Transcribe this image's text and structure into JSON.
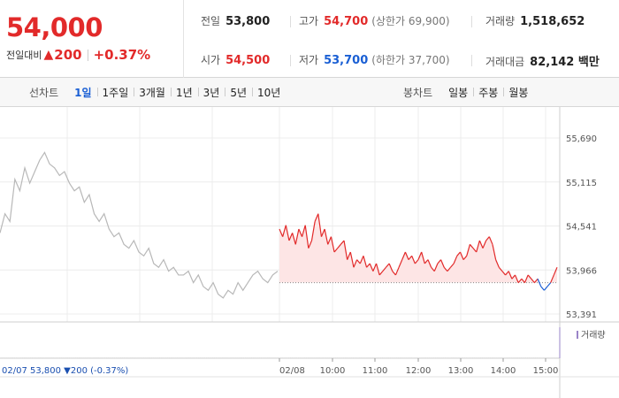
{
  "header": {
    "price": "54,000",
    "change_label": "전일대비",
    "change_arrow": "▲",
    "change_value": "200",
    "change_rate": "+0.37%"
  },
  "stats": {
    "prev_close_label": "전일",
    "prev_close": "53,800",
    "high_label": "고가",
    "high": "54,700",
    "upper_limit": "(상한가 69,900)",
    "volume_label": "거래량",
    "volume": "1,518,652",
    "open_label": "시가",
    "open": "54,500",
    "low_label": "저가",
    "low": "53,700",
    "lower_limit": "(하한가 37,700)",
    "amount_label": "거래대금",
    "amount": "82,142 백만"
  },
  "toolbar": {
    "line_label": "선차트",
    "line_periods": [
      "1일",
      "1주일",
      "3개월",
      "1년",
      "3년",
      "5년",
      "10년"
    ],
    "active_period": "1일",
    "candle_label": "봉차트",
    "candle_periods": [
      "일봉",
      "주봉",
      "월봉"
    ]
  },
  "colors": {
    "up": "#e22a2a",
    "down": "#1a5fd4",
    "prev_day": "#b8b8b8",
    "fill_up": "#fde5e5"
  },
  "chart_data": {
    "type": "line",
    "title": "",
    "xlabel": "",
    "ylabel": "",
    "ylim": [
      53391,
      55690
    ],
    "y_ticks": [
      "55,690",
      "55,115",
      "54,541",
      "53,966",
      "53,391"
    ],
    "x_ticks": [
      "02/08",
      "10:00",
      "11:00",
      "12:00",
      "13:00",
      "14:00",
      "15:00"
    ],
    "baseline": 53800,
    "volume_label": "거래량",
    "footer_prev_date": "02/07",
    "footer_prev_summary": "53,800 ▼200 (-0.37%)",
    "series": [
      {
        "values": [
          54450,
          54700,
          54600,
          55150,
          55000,
          55300,
          55100,
          55250,
          55400,
          55500,
          55350,
          55300,
          55200,
          55250,
          55100,
          55000,
          55050,
          54850,
          54950,
          54700,
          54600,
          54700,
          54500,
          54400,
          54450,
          54300,
          54250,
          54350,
          54200,
          54150,
          54250,
          54050,
          54000,
          54100,
          53950,
          54000,
          53900,
          53900,
          53950,
          53800,
          53900,
          53750,
          53700,
          53800,
          53650,
          53600,
          53700,
          53650,
          53800,
          53700,
          53800,
          53900,
          53950,
          53850,
          53800,
          53900,
          53950
        ]
      },
      {
        "values": [
          54500,
          54400,
          54550,
          54350,
          54450,
          54300,
          54500,
          54400,
          54550,
          54250,
          54350,
          54600,
          54700,
          54400,
          54500,
          54300,
          54400,
          54200,
          54250,
          54300,
          54350,
          54100,
          54200,
          54000,
          54100,
          54050,
          54150,
          54000,
          54050,
          53950,
          54050,
          53900,
          53950,
          54000,
          54050,
          53950,
          53900,
          54000,
          54100,
          54200,
          54100,
          54150,
          54050,
          54100,
          54200,
          54050,
          54100,
          54000,
          53950,
          54050,
          54100,
          54000,
          53950,
          54000,
          54050,
          54150,
          54200,
          54100,
          54150,
          54300,
          54250,
          54200,
          54350,
          54250,
          54350,
          54400,
          54300,
          54100,
          54000,
          53950,
          53900,
          53950,
          53850,
          53900,
          53800,
          53850,
          53800,
          53900,
          53850,
          53800,
          53850,
          53750,
          53700,
          53750,
          53800,
          53900,
          54000
        ]
      }
    ],
    "volume": [
      1,
      1,
      1,
      1,
      1,
      1,
      1,
      1,
      1,
      1,
      1,
      1,
      1,
      1,
      1,
      1,
      1,
      1,
      1,
      1,
      1,
      1,
      1,
      1,
      1,
      1,
      1,
      1,
      1,
      1,
      1,
      1,
      1,
      1,
      1,
      1,
      1,
      1,
      1,
      1,
      1,
      1,
      1,
      1,
      1,
      1,
      1,
      1,
      1,
      1,
      1,
      1,
      1,
      1,
      1,
      1,
      1,
      1,
      1,
      1,
      1,
      1,
      1,
      1,
      1,
      1,
      1,
      1,
      1,
      1,
      1,
      1,
      1,
      1,
      1,
      1,
      1,
      1,
      1,
      1,
      1,
      1,
      1,
      1,
      1,
      1,
      1,
      1,
      1,
      1,
      1,
      1,
      1,
      1,
      1,
      1,
      1,
      1,
      1,
      1,
      1,
      1,
      1,
      1,
      1,
      1,
      1,
      1,
      1,
      1,
      1,
      1,
      1,
      1,
      1,
      1,
      1,
      1,
      1,
      1,
      1,
      1,
      1,
      1,
      1,
      1,
      1,
      1,
      1,
      1,
      1,
      1,
      1,
      1,
      1,
      1,
      1,
      1,
      1,
      1,
      1,
      1,
      1,
      1,
      1,
      1,
      1,
      1,
      1,
      1,
      1,
      1,
      1,
      1,
      1,
      1,
      1,
      1,
      1,
      1,
      1,
      1,
      1,
      1,
      1,
      1,
      1,
      1,
      1,
      1,
      1,
      1,
      1,
      1,
      1,
      1,
      1,
      1,
      1,
      1,
      1,
      1,
      1,
      1,
      1,
      1,
      1,
      1,
      1,
      1,
      1,
      1,
      1,
      1,
      1,
      1,
      1,
      1,
      1,
      1,
      1,
      1,
      1,
      1,
      1,
      1,
      1,
      1,
      1,
      1,
      1,
      1,
      1,
      1,
      1,
      1,
      1,
      1,
      1,
      1,
      1,
      1,
      1,
      1,
      1,
      1,
      1,
      1,
      1,
      1,
      1,
      1,
      1,
      1,
      1,
      1,
      1,
      1,
      1,
      1,
      1,
      1,
      1,
      1,
      1,
      1,
      1,
      1,
      1,
      1,
      1,
      1,
      1,
      1,
      1,
      1,
      1,
      1,
      1,
      1,
      1,
      1,
      1,
      1,
      1,
      1,
      1,
      1,
      1,
      1,
      1,
      1,
      1,
      1,
      1,
      1,
      1,
      1,
      1,
      1,
      1,
      1,
      1,
      1,
      1,
      1,
      1,
      1,
      1,
      1,
      1,
      1,
      1,
      1,
      1,
      1,
      1,
      1,
      1,
      1,
      1,
      1,
      1,
      1,
      1,
      1,
      1,
      1,
      1,
      1,
      1,
      1,
      1,
      1,
      1,
      1,
      1,
      1,
      1,
      1,
      1,
      1,
      1,
      1,
      1,
      1,
      1,
      1,
      1,
      1,
      1,
      1,
      1,
      1,
      1,
      1,
      1,
      1,
      1,
      1,
      1,
      1,
      1,
      1,
      1,
      1,
      1,
      40
    ]
  }
}
